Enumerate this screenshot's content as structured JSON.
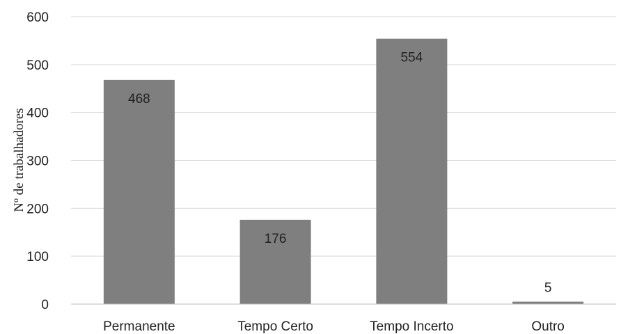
{
  "chart_data": {
    "type": "bar",
    "title": "",
    "xlabel": "",
    "ylabel": "Nº de trabalhadores",
    "categories": [
      "Permanente",
      "Tempo Certo",
      "Tempo Incerto",
      "Outro"
    ],
    "values": [
      468,
      176,
      554,
      5
    ],
    "data_labels": [
      "468",
      "176",
      "554",
      "5"
    ],
    "ylim": [
      0,
      600
    ],
    "yticks": [
      0,
      100,
      200,
      300,
      400,
      500,
      600
    ],
    "grid": true,
    "legend": "none",
    "colors": {
      "bar": "#7f7f7f",
      "grid": "#d9d9d9",
      "axis": "#bfbfbf",
      "text": "#222222"
    }
  }
}
